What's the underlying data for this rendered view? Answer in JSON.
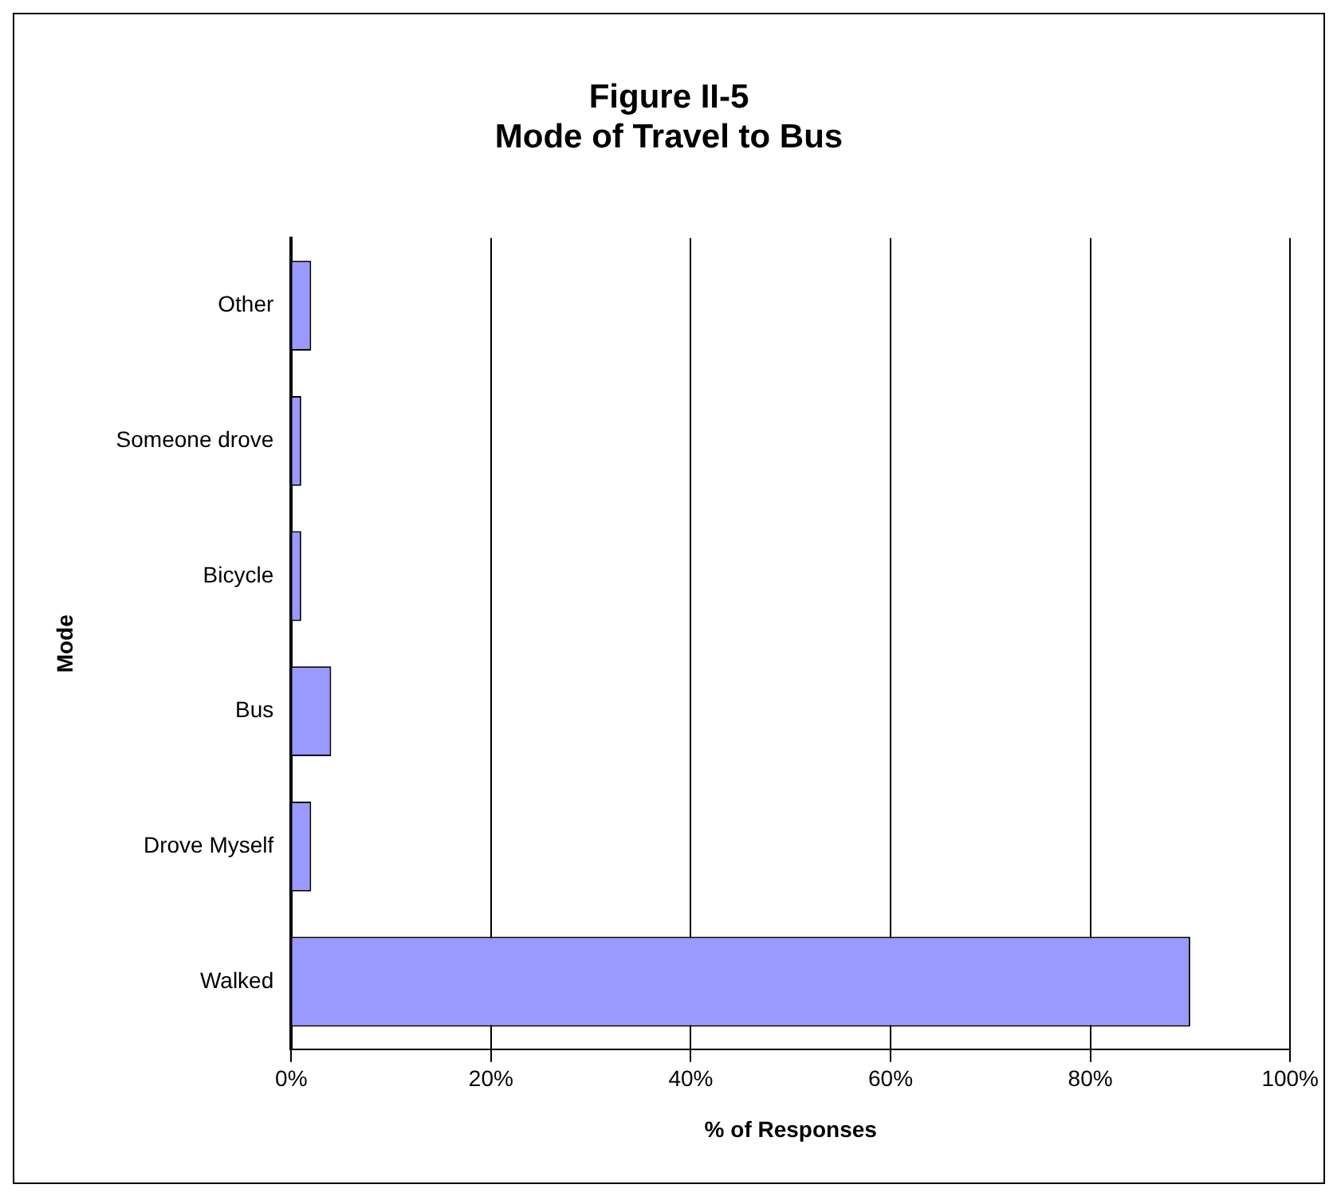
{
  "chart_data": {
    "type": "bar",
    "orientation": "horizontal",
    "title": [
      "Figure II-5",
      "Mode of Travel to Bus"
    ],
    "xlabel": "% of Responses",
    "ylabel": "Mode",
    "categories": [
      "Other",
      "Someone drove",
      "Bicycle",
      "Bus",
      "Drove Myself",
      "Walked"
    ],
    "values": [
      2,
      1,
      1,
      4,
      2,
      90
    ],
    "color": "#9999ff",
    "xlim": [
      0,
      100
    ],
    "xticks": [
      {
        "value": 0,
        "label": "0%"
      },
      {
        "value": 20,
        "label": "20%"
      },
      {
        "value": 40,
        "label": "40%"
      },
      {
        "value": 60,
        "label": "60%"
      },
      {
        "value": 80,
        "label": "80%"
      },
      {
        "value": 100,
        "label": "100%"
      }
    ],
    "grid": "x",
    "legend": false
  }
}
